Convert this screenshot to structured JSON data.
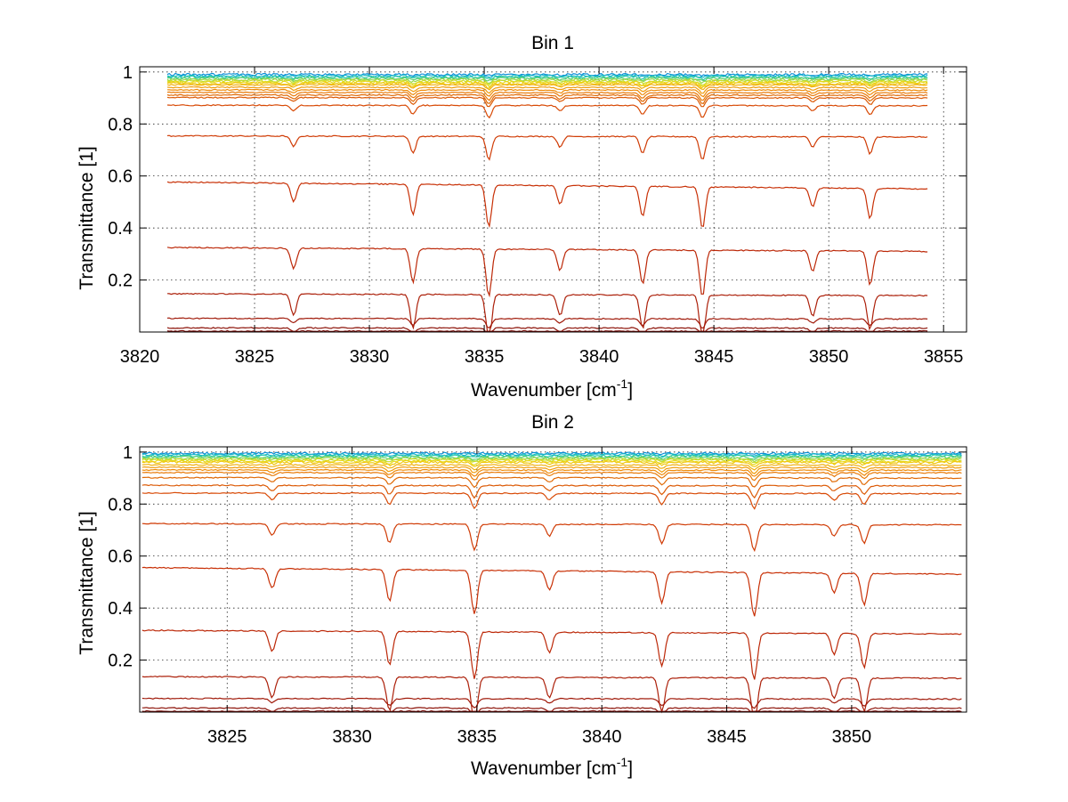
{
  "chart_data": [
    {
      "type": "line",
      "title": "Bin 1",
      "xlabel": "Wavenumber [cm",
      "xlabel_sup": "-1",
      "xlabel_end": "]",
      "ylabel": "Transmittance [1]",
      "xlim": [
        3820,
        3856
      ],
      "ylim": [
        0,
        1.02
      ],
      "xticks": [
        "3820",
        "3825",
        "3830",
        "3835",
        "3840",
        "3845",
        "3850",
        "3855"
      ],
      "yticks": [
        "0.2",
        "0.4",
        "0.6",
        "0.8",
        "1"
      ],
      "grid": true,
      "x_range": [
        3821.2,
        3854.3
      ],
      "absorption_lines": [
        3826.7,
        3831.9,
        3835.2,
        3838.3,
        3841.9,
        3844.5,
        3849.3,
        3851.8
      ],
      "series_levels": [
        0.99,
        0.985,
        0.98,
        0.975,
        0.97,
        0.965,
        0.96,
        0.955,
        0.95,
        0.94,
        0.93,
        0.92,
        0.91,
        0.9,
        0.87,
        0.75,
        0.55,
        0.31,
        0.14,
        0.05,
        0.015,
        0.003
      ],
      "series_colors": [
        "#0a8fd8",
        "#18b6c8",
        "#28c8a8",
        "#5ad070",
        "#98d84a",
        "#c8dc2a",
        "#e8d818",
        "#f0c810",
        "#f0b010",
        "#f09c0c",
        "#ee8a0a",
        "#e87a08",
        "#e06a06",
        "#dc5a06",
        "#d84a06",
        "#d03c06",
        "#c83006",
        "#bc2808",
        "#ac200a",
        "#a01a0a",
        "#8c1208",
        "#780a06"
      ]
    },
    {
      "type": "line",
      "title": "Bin 2",
      "xlabel": "Wavenumber [cm",
      "xlabel_sup": "-1",
      "xlabel_end": "]",
      "ylabel": "Transmittance [1]",
      "xlim": [
        3821.5,
        3854.6
      ],
      "ylim": [
        0,
        1.02
      ],
      "xticks": [
        "3825",
        "3830",
        "3835",
        "3840",
        "3845",
        "3850"
      ],
      "yticks": [
        "0.2",
        "0.4",
        "0.6",
        "0.8",
        "1"
      ],
      "grid": true,
      "x_range": [
        3821.6,
        3854.4
      ],
      "absorption_lines": [
        3826.8,
        3831.5,
        3834.9,
        3837.9,
        3842.4,
        3846.1,
        3849.3,
        3850.5
      ],
      "series_levels": [
        0.995,
        0.99,
        0.985,
        0.98,
        0.975,
        0.97,
        0.965,
        0.96,
        0.95,
        0.94,
        0.93,
        0.92,
        0.9,
        0.87,
        0.84,
        0.72,
        0.53,
        0.3,
        0.13,
        0.05,
        0.015,
        0.003
      ],
      "series_colors": [
        "#0a8fd8",
        "#18b6c8",
        "#28c8a8",
        "#5ad070",
        "#98d84a",
        "#c8dc2a",
        "#e8d818",
        "#f0c810",
        "#f0b010",
        "#f09c0c",
        "#ee8a0a",
        "#e87a08",
        "#e06a06",
        "#dc5a06",
        "#d84a06",
        "#d03c06",
        "#c83006",
        "#bc2808",
        "#ac200a",
        "#a01a0a",
        "#8c1208",
        "#780a06"
      ]
    }
  ]
}
